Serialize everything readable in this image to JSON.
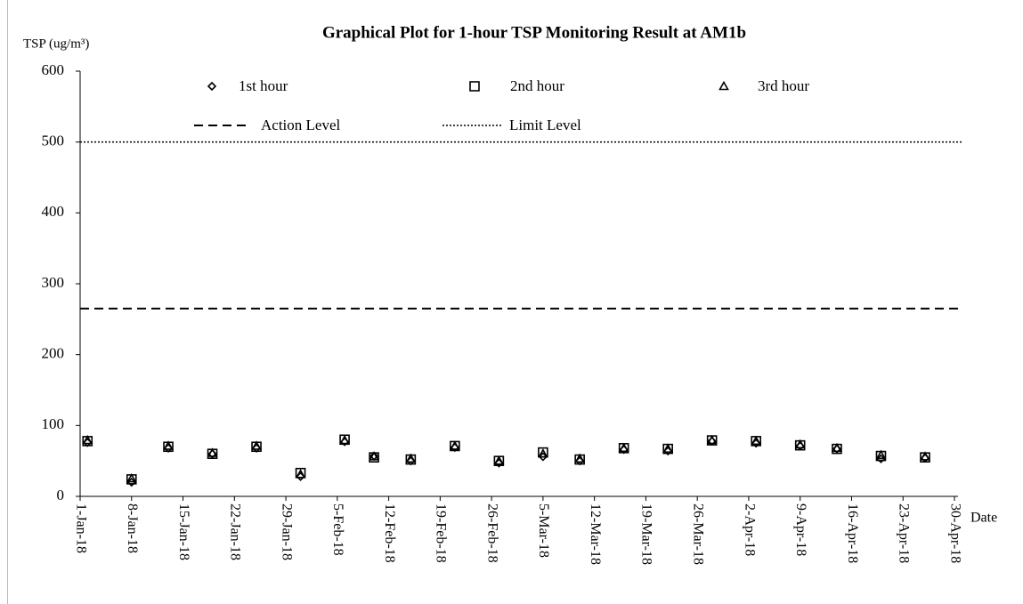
{
  "chart_data": {
    "type": "scatter",
    "title": "Graphical Plot for 1-hour TSP Monitoring Result at AM1b",
    "y_label": "TSP (ug/m³)",
    "x_label": "Date",
    "x": [
      "2018-01-02",
      "2018-01-08",
      "2018-01-13",
      "2018-01-19",
      "2018-01-25",
      "2018-01-31",
      "2018-02-06",
      "2018-02-10",
      "2018-02-15",
      "2018-02-21",
      "2018-02-27",
      "2018-03-05",
      "2018-03-10",
      "2018-03-16",
      "2018-03-22",
      "2018-03-28",
      "2018-04-03",
      "2018-04-09",
      "2018-04-14",
      "2018-04-20",
      "2018-04-26"
    ],
    "series": [
      {
        "name": "1st hour",
        "marker": "diamond",
        "color": "#000000",
        "values": [
          76,
          20,
          68,
          60,
          68,
          28,
          77,
          57,
          50,
          69,
          47,
          56,
          50,
          66,
          64,
          78,
          75,
          71,
          67,
          53,
          54
        ]
      },
      {
        "name": "2nd hour",
        "marker": "square",
        "color": "#000000",
        "values": [
          78,
          24,
          70,
          60,
          70,
          33,
          80,
          55,
          52,
          71,
          50,
          62,
          52,
          68,
          67,
          79,
          78,
          72,
          67,
          57,
          55
        ]
      },
      {
        "name": "3rd hour",
        "marker": "triangle",
        "color": "#000000",
        "values": [
          79,
          25,
          71,
          61,
          71,
          31,
          79,
          56,
          53,
          71,
          50,
          60,
          53,
          68,
          67,
          79,
          78,
          73,
          68,
          58,
          56
        ]
      }
    ],
    "reference_lines": [
      {
        "name": "Action Level",
        "value": 265,
        "style": "dashed"
      },
      {
        "name": "Limit Level",
        "value": 500,
        "style": "dotted"
      }
    ],
    "xlim": [
      "2018-01-01",
      "2018-04-30"
    ],
    "xticks": [
      {
        "value": "2018-01-01",
        "label": "1-Jan-18"
      },
      {
        "value": "2018-01-08",
        "label": "8-Jan-18"
      },
      {
        "value": "2018-01-15",
        "label": "15-Jan-18"
      },
      {
        "value": "2018-01-22",
        "label": "22-Jan-18"
      },
      {
        "value": "2018-01-29",
        "label": "29-Jan-18"
      },
      {
        "value": "2018-02-05",
        "label": "5-Feb-18"
      },
      {
        "value": "2018-02-12",
        "label": "12-Feb-18"
      },
      {
        "value": "2018-02-19",
        "label": "19-Feb-18"
      },
      {
        "value": "2018-02-26",
        "label": "26-Feb-18"
      },
      {
        "value": "2018-03-05",
        "label": "5-Mar-18"
      },
      {
        "value": "2018-03-12",
        "label": "12-Mar-18"
      },
      {
        "value": "2018-03-19",
        "label": "19-Mar-18"
      },
      {
        "value": "2018-03-26",
        "label": "26-Mar-18"
      },
      {
        "value": "2018-04-02",
        "label": "2-Apr-18"
      },
      {
        "value": "2018-04-09",
        "label": "9-Apr-18"
      },
      {
        "value": "2018-04-16",
        "label": "16-Apr-18"
      },
      {
        "value": "2018-04-23",
        "label": "23-Apr-18"
      },
      {
        "value": "2018-04-30",
        "label": "30-Apr-18"
      }
    ],
    "ylim": [
      0,
      600
    ],
    "yticks": [
      0,
      100,
      200,
      300,
      400,
      500,
      600
    ],
    "grid": false
  }
}
